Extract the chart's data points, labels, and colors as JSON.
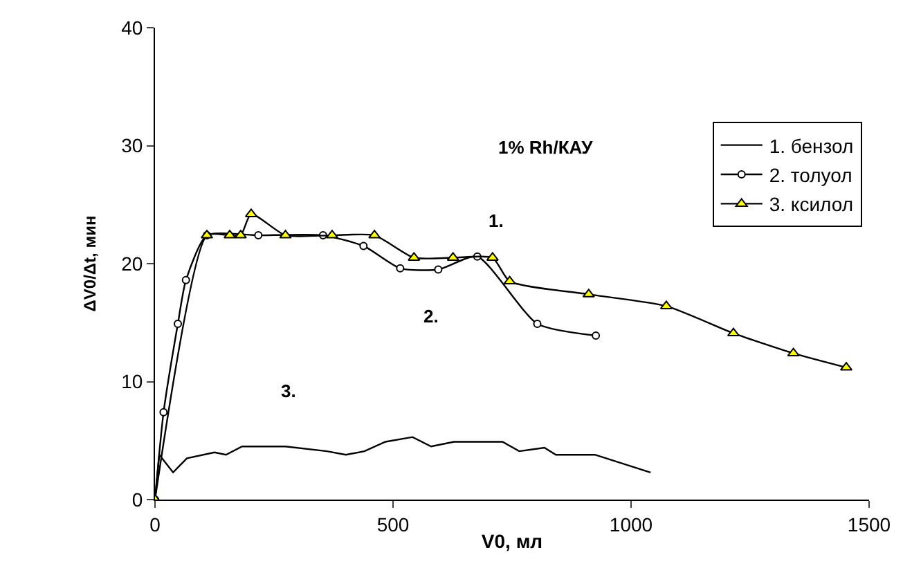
{
  "chart_data": {
    "type": "line",
    "xlabel": "V0, мл",
    "ylabel": "ΔV0/Δt, мин",
    "xlim": [
      0,
      1500
    ],
    "xticks": [
      0,
      500,
      1000,
      1500
    ],
    "ylim": [
      0,
      40
    ],
    "yticks": [
      0,
      10,
      20,
      30,
      40
    ],
    "legend": "top right",
    "annotations": [
      "1% Rh/КАУ",
      "1.",
      "2.",
      "3."
    ],
    "series": [
      {
        "name": "1. бензол",
        "color": "#000000",
        "marker": "none",
        "x": [
          0,
          9,
          38,
          67,
          125,
          149,
          183,
          274,
          361,
          401,
          440,
          484,
          541,
          580,
          628,
          730,
          765,
          818,
          842,
          924,
          1041
        ],
        "values": [
          0,
          3.8,
          2.3,
          3.5,
          4,
          3.8,
          4.5,
          4.5,
          4.1,
          3.8,
          4.1,
          4.9,
          5.3,
          4.5,
          4.9,
          4.9,
          4.1,
          4.4,
          3.8,
          3.8,
          2.3
        ]
      },
      {
        "name": "2. толуол",
        "color": "#ffffff",
        "marker": "circle",
        "x": [
          0,
          18,
          48,
          65,
          109,
          217,
          353,
          438,
          515,
          595,
          677,
          803,
          926
        ],
        "values": [
          0,
          7.4,
          14.9,
          18.6,
          22.4,
          22.4,
          22.4,
          21.5,
          19.6,
          19.5,
          20.6,
          14.9,
          13.9
        ]
      },
      {
        "name": "3. ксилол",
        "color": "#ffff00",
        "marker": "triangle",
        "x": [
          0,
          109,
          157,
          180,
          202,
          274,
          372,
          461,
          544,
          626,
          709,
          745,
          911,
          1074,
          1215,
          1341,
          1452
        ],
        "values": [
          0,
          22.4,
          22.4,
          22.4,
          24.2,
          22.4,
          22.4,
          22.4,
          20.5,
          20.5,
          20.5,
          18.5,
          17.4,
          16.4,
          14.1,
          12.4,
          11.2
        ]
      }
    ]
  }
}
